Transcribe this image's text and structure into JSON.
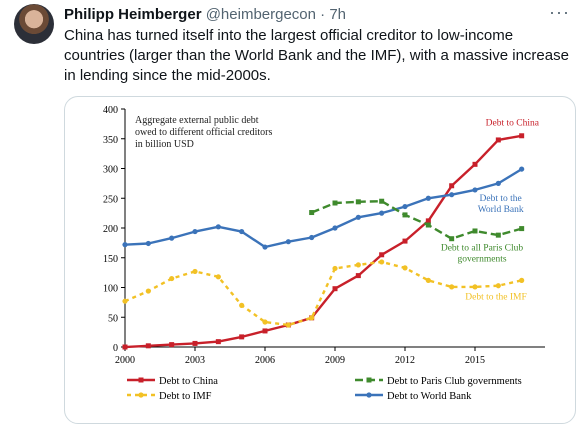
{
  "tweet": {
    "author_name": "Philipp Heimberger",
    "handle": "@heimbergecon",
    "separator": "·",
    "time": "7h",
    "more_label": "···",
    "text": "China has turned itself into the largest official creditor to low-income countries (larger than the World Bank and the IMF), with a massive increase in lending since the mid-2000s."
  },
  "colors": {
    "china": "#c8202a",
    "paris": "#3f8a2d",
    "imf": "#f2c125",
    "wb": "#3b73b9",
    "axis": "#000000"
  },
  "chart_data": {
    "type": "line",
    "title_lines": [
      "Aggregate external public debt",
      "owed to different official creditors",
      "in billion USD"
    ],
    "xlim": [
      2000,
      2018
    ],
    "ylim": [
      0,
      400
    ],
    "x_ticks": [
      2000,
      2003,
      2006,
      2009,
      2012,
      2015
    ],
    "y_ticks": [
      0,
      50,
      100,
      150,
      200,
      250,
      300,
      350,
      400
    ],
    "series": [
      {
        "key": "china",
        "name": "Debt to China",
        "dash": "solid",
        "marker": "square",
        "label_lines": [
          "Debt to China"
        ],
        "label_at": [
          2016.6,
          372
        ],
        "x": [
          2000,
          2001,
          2002,
          2003,
          2004,
          2005,
          2006,
          2007,
          2008,
          2009,
          2010,
          2011,
          2012,
          2013,
          2014,
          2015,
          2016,
          2017
        ],
        "values": [
          0,
          2,
          4,
          6,
          9,
          17,
          27,
          37,
          49,
          98,
          120,
          155,
          178,
          212,
          271,
          307,
          348,
          355
        ]
      },
      {
        "key": "wb",
        "name": "Debt to World Bank",
        "dash": "solid",
        "marker": "circle",
        "label_lines": [
          "Debt to the",
          "World Bank"
        ],
        "label_at": [
          2016.1,
          245
        ],
        "x": [
          2000,
          2001,
          2002,
          2003,
          2004,
          2005,
          2006,
          2007,
          2008,
          2009,
          2010,
          2011,
          2012,
          2013,
          2014,
          2015,
          2016,
          2017
        ],
        "values": [
          172,
          174,
          183,
          194,
          202,
          194,
          168,
          177,
          184,
          200,
          218,
          225,
          236,
          250,
          256,
          264,
          275,
          299
        ]
      },
      {
        "key": "paris",
        "name": "Debt to Paris Club governments",
        "dash": "long",
        "marker": "square",
        "label_lines": [
          "Debt to all Paris Club",
          "governments"
        ],
        "label_at": [
          2015.3,
          162
        ],
        "x": [
          2008,
          2009,
          2010,
          2011,
          2012,
          2013,
          2014,
          2015,
          2016,
          2017
        ],
        "values": [
          226,
          242,
          244,
          245,
          222,
          205,
          182,
          195,
          188,
          199
        ]
      },
      {
        "key": "imf",
        "name": "Debt to IMF",
        "dash": "short",
        "marker": "circle",
        "label_lines": [
          "Debt to the IMF"
        ],
        "label_at": [
          2015.9,
          80
        ],
        "x": [
          2000,
          2001,
          2002,
          2003,
          2004,
          2005,
          2006,
          2007,
          2008,
          2009,
          2010,
          2011,
          2012,
          2013,
          2014,
          2015,
          2016,
          2017
        ],
        "values": [
          77,
          94,
          115,
          127,
          118,
          70,
          42,
          37,
          49,
          132,
          138,
          143,
          133,
          112,
          101,
          101,
          103,
          112
        ]
      }
    ],
    "legend": {
      "placement": "bottom",
      "items": [
        {
          "key": "china",
          "label": "Debt to China"
        },
        {
          "key": "paris",
          "label": "Debt to Paris Club governments"
        },
        {
          "key": "imf",
          "label": "Debt to IMF"
        },
        {
          "key": "wb",
          "label": "Debt to World Bank"
        }
      ]
    }
  }
}
